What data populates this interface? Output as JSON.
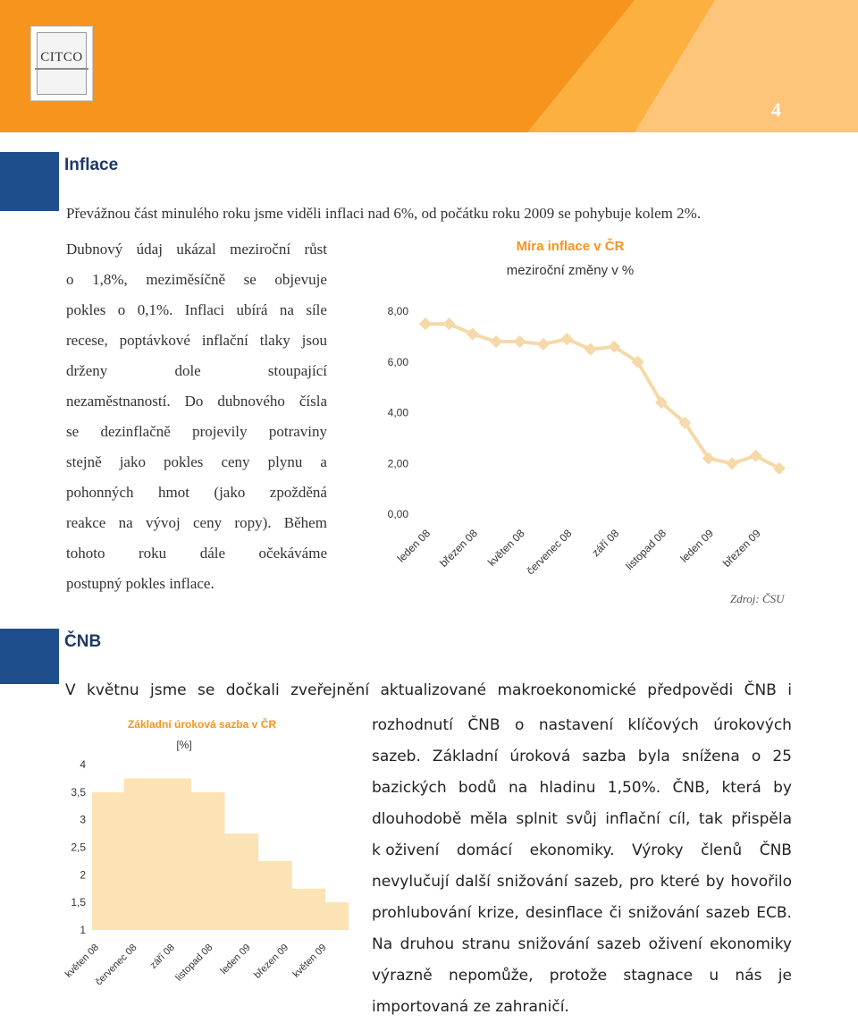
{
  "header": {
    "logo_text": "CITCO",
    "page_number": "4"
  },
  "section1": {
    "title": "Inflace",
    "intro": "Převážnou část minulého roku jsme viděli inflaci nad 6%, od počátku roku 2009 se pohybuje kolem 2%.",
    "lines": [
      [
        "Dubnový",
        "údaj",
        "ukázal",
        "meziroční",
        "růst"
      ],
      [
        "o",
        "1,8%,",
        "meziměsíčně",
        "se",
        "objevuje"
      ],
      [
        "pokles",
        "o",
        "0,1%.",
        "Inflaci",
        "ubírá",
        "na",
        "síle"
      ],
      [
        "recese,",
        "poptávkové",
        "inflační",
        "tlaky",
        "jsou"
      ],
      [
        "drženy",
        "dole",
        "stoupající"
      ],
      [
        "nezaměstnaností.",
        "Do",
        "dubnového",
        "čísla"
      ],
      [
        "se",
        "dezinflačně",
        "projevily",
        "potraviny"
      ],
      [
        "stejně",
        "jako",
        "pokles",
        "ceny",
        "plynu",
        "a"
      ],
      [
        "pohonných",
        "hmot",
        "(jako",
        "zpožděná"
      ],
      [
        "reakce",
        "na",
        "vývoj",
        "ceny",
        "ropy).",
        "Během"
      ],
      [
        "tohoto",
        "roku",
        "dále",
        "očekáváme"
      ],
      [
        "postupný pokles inflace."
      ]
    ],
    "source": "Zdroj: ČSU"
  },
  "section2": {
    "title": "ČNB",
    "lines": [
      [
        "V",
        "květnu",
        "jsme",
        "se",
        "dočkali",
        "zveřejnění",
        "aktualizované",
        "makroekonomické",
        "předpovědi",
        "ČNB",
        "i"
      ],
      [
        "rozhodnutí",
        "ČNB",
        "o",
        "nastavení",
        "klíčových",
        "úrokových"
      ],
      [
        "sazeb.",
        "Základní",
        "úroková",
        "sazba",
        "byla",
        "snížena",
        "o",
        "25"
      ],
      [
        "bazických",
        "bodů",
        "na",
        "hladinu",
        "1,50%.",
        "ČNB,",
        "která",
        "by"
      ],
      [
        "dlouhodobě",
        "měla",
        "splnit",
        "svůj",
        "inflační",
        "cíl,",
        "tak",
        "přispěla"
      ],
      [
        "k oživení",
        "domácí",
        "ekonomiky.",
        "Výroky",
        "členů",
        "ČNB"
      ],
      [
        "nevylučují",
        "další",
        "snižování",
        "sazeb,",
        "pro",
        "které",
        "by",
        "hovořilo"
      ],
      [
        "prohlubování",
        "krize,",
        "desinflace",
        "či",
        "snižování",
        "sazeb",
        "ECB."
      ],
      [
        "Na",
        "druhou",
        "stranu",
        "snižování",
        "sazeb",
        "oživení",
        "ekonomiky"
      ],
      [
        "výrazně",
        "nepomůže,",
        "protože",
        "stagnace",
        "u",
        "nás",
        "je"
      ],
      [
        "importovaná ze zahraničí."
      ]
    ]
  },
  "chart_data": [
    {
      "type": "line",
      "title": "Míra inflace v ČR",
      "subtitle": "meziroční změny v %",
      "x": [
        "leden 08",
        "únor 08",
        "březen 08",
        "duben 08",
        "květen 08",
        "červen 08",
        "červenec 08",
        "srpen 08",
        "září 08",
        "říjen 08",
        "listopad 08",
        "prosinec 08",
        "leden 09",
        "únor 09",
        "březen 09",
        "duben 09"
      ],
      "x_tick_labels": [
        "leden 08",
        "březen 08",
        "květen 08",
        "červenec 08",
        "září 08",
        "listopad 08",
        "leden 09",
        "březen 09"
      ],
      "values": [
        7.5,
        7.5,
        7.1,
        6.8,
        6.8,
        6.7,
        6.9,
        6.5,
        6.6,
        6.0,
        4.4,
        3.6,
        2.2,
        2.0,
        2.3,
        1.8
      ],
      "yticks": [
        "0,00",
        "2,00",
        "4,00",
        "6,00",
        "8,00"
      ],
      "ylim": [
        0,
        8
      ],
      "color": "#f5d9a8",
      "grid": false
    },
    {
      "type": "area",
      "step": true,
      "title": "Základní úroková sazba v ČR",
      "subtitle": "[%]",
      "x_tick_labels": [
        "květen 08",
        "červenec 08",
        "září 08",
        "listopad 08",
        "leden 09",
        "březen 09",
        "květen 09"
      ],
      "values": [
        3.5,
        3.75,
        3.75,
        3.5,
        2.75,
        2.25,
        1.75,
        1.5
      ],
      "yticks": [
        "1",
        "1,5",
        "2",
        "2,5",
        "3",
        "3,5",
        "4"
      ],
      "ylim": [
        1,
        4
      ],
      "color": "#fbe3b5",
      "grid": false
    }
  ],
  "colors": {
    "accent": "#f7941d",
    "blue": "#1f4e8c",
    "chart_title": "#f7941d",
    "line": "#f5d9a8"
  }
}
